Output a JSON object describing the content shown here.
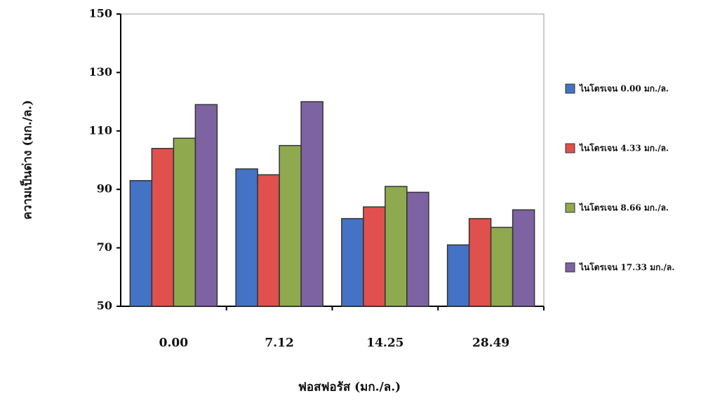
{
  "chart_data": {
    "type": "bar",
    "x_label": "ฟอสฟอรัส (มก./ล.)",
    "y_label": "ความเป็นด่าง (มก./ล.)",
    "categories": [
      "0.00",
      "7.12",
      "14.25",
      "28.49"
    ],
    "series": [
      {
        "name": "ไนโตรเจน 0.00 มก./ล.",
        "color": "#4472c4",
        "values": [
          93,
          97,
          80,
          71
        ]
      },
      {
        "name": "ไนโตรเจน 4.33 มก./ล.",
        "color": "#e0504d",
        "values": [
          104,
          95,
          84,
          80
        ]
      },
      {
        "name": "ไนโตรเจน 8.66 มก./ล.",
        "color": "#8faa4e",
        "values": [
          107.5,
          105,
          91,
          77
        ]
      },
      {
        "name": "ไนโตรเจน 17.33 มก./ล.",
        "color": "#7e63a3",
        "values": [
          119,
          120,
          89,
          83
        ]
      }
    ],
    "ylim": [
      50,
      150
    ],
    "yticks": [
      50,
      70,
      90,
      110,
      130,
      150
    ],
    "legend": "right"
  }
}
